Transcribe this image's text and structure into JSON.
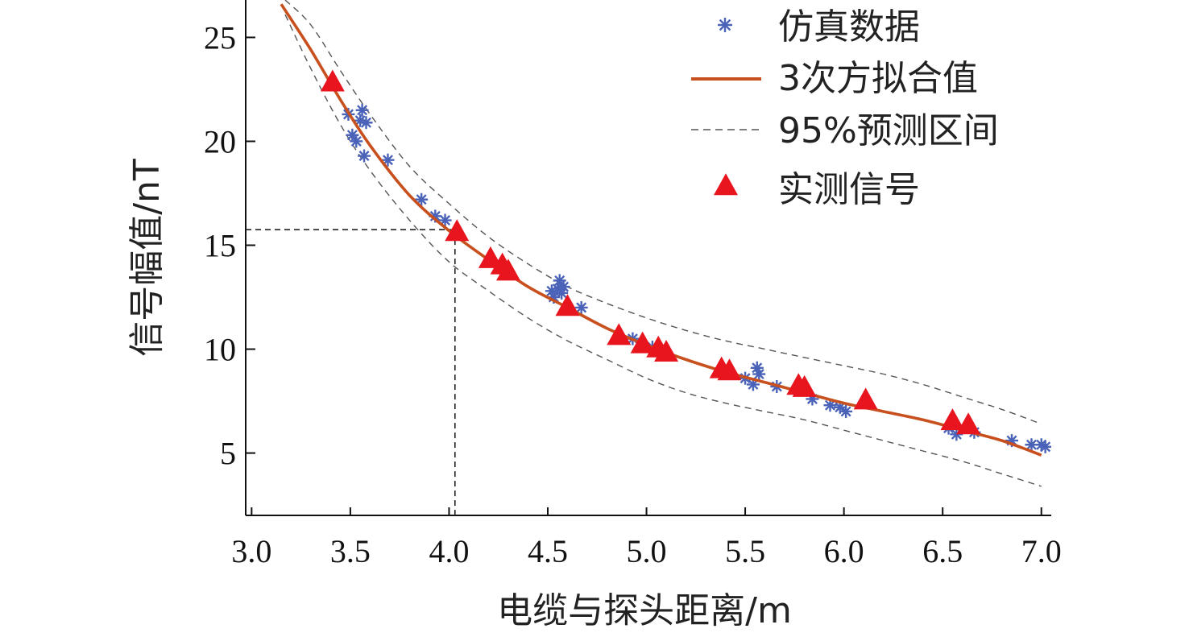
{
  "chart_data": {
    "type": "scatter",
    "xlabel": "电缆与探头距离/m",
    "ylabel": "信号幅值/nT",
    "xlim": [
      2.97,
      7.05
    ],
    "ylim": [
      2.0,
      26.8
    ],
    "xticks": [
      3.0,
      3.5,
      4.0,
      4.5,
      5.0,
      5.5,
      6.0,
      6.5,
      7.0
    ],
    "xtick_labels": [
      "3.0",
      "3.5",
      "4.0",
      "4.5",
      "5.0",
      "5.5",
      "6.0",
      "6.5",
      "7.0"
    ],
    "yticks": [
      5,
      10,
      15,
      20,
      25
    ],
    "ytick_labels": [
      "5",
      "10",
      "15",
      "20",
      "25"
    ],
    "grid": false,
    "legend_position": "top-right",
    "colors": {
      "simulation": "#4a63b8",
      "fit": "#c8501e",
      "interval": "#555555",
      "measured": "#e8141e"
    },
    "series": [
      {
        "name": "仿真数据",
        "kind": "scatter",
        "marker": "asterisk",
        "x": [
          3.49,
          3.51,
          3.53,
          3.55,
          3.56,
          3.57,
          3.58,
          3.69,
          3.86,
          3.93,
          3.98,
          4.52,
          4.53,
          4.55,
          4.56,
          4.57,
          4.58,
          4.67,
          4.93,
          5.03,
          5.09,
          5.5,
          5.54,
          5.56,
          5.57,
          5.66,
          5.84,
          5.93,
          5.98,
          6.01,
          6.53,
          6.57,
          6.66,
          6.85,
          6.95,
          7.0,
          7.02
        ],
        "y": [
          21.3,
          20.3,
          20.0,
          21.0,
          21.5,
          19.3,
          20.9,
          19.1,
          17.2,
          16.4,
          16.2,
          12.8,
          12.5,
          12.9,
          13.3,
          12.7,
          13.0,
          12.0,
          10.5,
          10.1,
          9.8,
          8.6,
          8.3,
          9.1,
          8.8,
          8.2,
          7.6,
          7.3,
          7.2,
          7.0,
          6.2,
          5.9,
          6.0,
          5.6,
          5.4,
          5.4,
          5.3
        ]
      },
      {
        "name": "3次方拟合值",
        "kind": "line",
        "x": [
          3.15,
          3.3,
          3.45,
          3.6,
          3.8,
          4.0,
          4.2,
          4.4,
          4.6,
          4.8,
          5.0,
          5.2,
          5.4,
          5.6,
          5.8,
          6.0,
          6.2,
          6.4,
          6.6,
          6.8,
          7.0
        ],
        "y": [
          26.6,
          24.4,
          22.0,
          19.8,
          17.4,
          15.7,
          14.3,
          13.0,
          12.0,
          11.0,
          10.2,
          9.5,
          8.9,
          8.4,
          7.9,
          7.4,
          7.0,
          6.6,
          6.1,
          5.6,
          4.9
        ]
      },
      {
        "name": "95%预测区间",
        "kind": "band",
        "x": [
          3.17,
          3.3,
          3.45,
          3.6,
          3.8,
          4.0,
          4.2,
          4.4,
          4.6,
          4.8,
          5.0,
          5.2,
          5.4,
          5.6,
          5.8,
          6.0,
          6.2,
          6.4,
          6.6,
          6.8,
          7.0
        ],
        "upper": [
          26.8,
          25.6,
          23.4,
          21.3,
          18.8,
          17.0,
          15.4,
          14.1,
          13.0,
          12.2,
          11.5,
          10.9,
          10.4,
          10.0,
          9.6,
          9.2,
          8.8,
          8.3,
          7.7,
          7.1,
          6.4
        ],
        "lower": [
          26.1,
          23.5,
          20.8,
          18.6,
          16.2,
          14.2,
          12.8,
          11.5,
          10.4,
          9.5,
          8.6,
          7.9,
          7.4,
          7.0,
          6.6,
          6.1,
          5.6,
          5.1,
          4.6,
          4.0,
          3.4
        ]
      },
      {
        "name": "实测信号",
        "kind": "scatter",
        "marker": "triangle",
        "x": [
          3.41,
          4.04,
          4.21,
          4.27,
          4.3,
          4.6,
          4.86,
          4.98,
          5.06,
          5.1,
          5.38,
          5.42,
          5.77,
          5.8,
          6.11,
          6.55,
          6.63
        ],
        "y": [
          22.8,
          15.6,
          14.3,
          14.0,
          13.7,
          12.0,
          10.6,
          10.2,
          10.0,
          9.8,
          9.0,
          8.9,
          8.2,
          8.1,
          7.5,
          6.5,
          6.3
        ]
      }
    ],
    "reference_point": {
      "x": 4.03,
      "y": 15.75
    },
    "legend": [
      {
        "label": "仿真数据",
        "marker": "asterisk"
      },
      {
        "label": "3次方拟合值",
        "marker": "line"
      },
      {
        "label": "95%预测区间",
        "marker": "dashed"
      },
      {
        "label": "实测信号",
        "marker": "triangle"
      }
    ]
  }
}
